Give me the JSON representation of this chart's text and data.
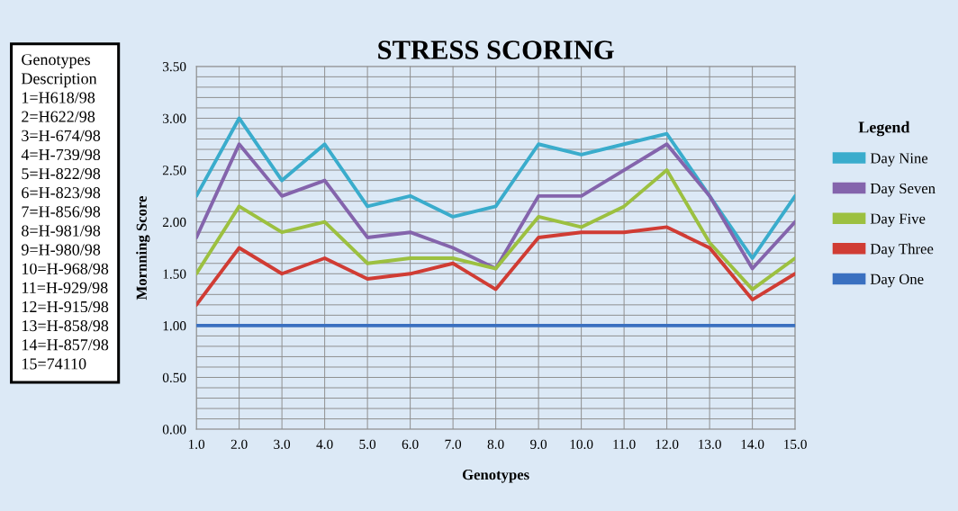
{
  "chart_data": {
    "type": "line",
    "title": "STRESS SCORING",
    "xlabel": "Genotypes",
    "ylabel": "Mornning Score",
    "legend_title": "Legend",
    "annotations": [
      "Genotypes\nDescription\n1=H618/98\n2=H622/98\n3=H-674/98\n4=H-739/98\n5=H-822/98\n6=H-823/98\n7=H-856/98\n8=H-981/98\n9=H-980/98\n10=H-968/98\n11=H-929/98\n12=H-915/98\n13=H-858/98\n14=H-857/98\n15=74110"
    ],
    "x": [
      1,
      2,
      3,
      4,
      5,
      6,
      7,
      8,
      9,
      10,
      11,
      12,
      13,
      14,
      15
    ],
    "series": [
      {
        "name": "Day Nine",
        "color": "#3aaccc",
        "values": [
          2.25,
          3.0,
          2.4,
          2.75,
          2.15,
          2.25,
          2.05,
          2.15,
          2.75,
          2.65,
          2.75,
          2.85,
          2.25,
          1.65,
          2.25
        ]
      },
      {
        "name": "Day Seven",
        "color": "#8464ac",
        "values": [
          1.85,
          2.75,
          2.25,
          2.4,
          1.85,
          1.9,
          1.75,
          1.55,
          2.25,
          2.25,
          2.5,
          2.75,
          2.25,
          1.55,
          2.0
        ]
      },
      {
        "name": "Day Five",
        "color": "#9cc040",
        "values": [
          1.5,
          2.15,
          1.9,
          2.0,
          1.6,
          1.65,
          1.65,
          1.55,
          2.05,
          1.95,
          2.15,
          2.5,
          1.8,
          1.35,
          1.65
        ]
      },
      {
        "name": "Day Three",
        "color": "#d03c34",
        "values": [
          1.2,
          1.75,
          1.5,
          1.65,
          1.45,
          1.5,
          1.6,
          1.35,
          1.85,
          1.9,
          1.9,
          1.95,
          1.75,
          1.25,
          1.5
        ]
      },
      {
        "name": "Day One",
        "color": "#3a70c0",
        "values": [
          1.0,
          1.0,
          1.0,
          1.0,
          1.0,
          1.0,
          1.0,
          1.0,
          1.0,
          1.0,
          1.0,
          1.0,
          1.0,
          1.0,
          1.0
        ]
      }
    ],
    "xlim": [
      1,
      15
    ],
    "xticks": [
      {
        "value": 1,
        "label": "1.0"
      },
      {
        "value": 2,
        "label": "2.0"
      },
      {
        "value": 3,
        "label": "3.0"
      },
      {
        "value": 4,
        "label": "4.0"
      },
      {
        "value": 5,
        "label": "5.0"
      },
      {
        "value": 6,
        "label": "6.0"
      },
      {
        "value": 7,
        "label": "7.0"
      },
      {
        "value": 8,
        "label": "8.0"
      },
      {
        "value": 9,
        "label": "9.0"
      },
      {
        "value": 10,
        "label": "10.0"
      },
      {
        "value": 11,
        "label": "11.0"
      },
      {
        "value": 12,
        "label": "12.0"
      },
      {
        "value": 13,
        "label": "13.0"
      },
      {
        "value": 14,
        "label": "14.0"
      },
      {
        "value": 15,
        "label": "15.0"
      }
    ],
    "ylim": [
      0,
      3.5
    ],
    "yticks": [
      {
        "value": 0,
        "label": "0.00"
      },
      {
        "value": 0.1,
        "label": null
      },
      {
        "value": 0.2,
        "label": null
      },
      {
        "value": 0.3,
        "label": null
      },
      {
        "value": 0.4,
        "label": null
      },
      {
        "value": 0.5,
        "label": "0.50"
      },
      {
        "value": 0.6,
        "label": null
      },
      {
        "value": 0.7,
        "label": null
      },
      {
        "value": 0.8,
        "label": null
      },
      {
        "value": 0.9,
        "label": null
      },
      {
        "value": 1.0,
        "label": "1.00"
      },
      {
        "value": 1.1,
        "label": null
      },
      {
        "value": 1.2,
        "label": null
      },
      {
        "value": 1.3,
        "label": null
      },
      {
        "value": 1.4,
        "label": null
      },
      {
        "value": 1.5,
        "label": "1.50"
      },
      {
        "value": 1.6,
        "label": null
      },
      {
        "value": 1.7,
        "label": null
      },
      {
        "value": 1.8,
        "label": null
      },
      {
        "value": 1.9,
        "label": null
      },
      {
        "value": 2.0,
        "label": "2.00"
      },
      {
        "value": 2.1,
        "label": null
      },
      {
        "value": 2.2,
        "label": null
      },
      {
        "value": 2.3,
        "label": null
      },
      {
        "value": 2.4,
        "label": null
      },
      {
        "value": 2.5,
        "label": "2.50"
      },
      {
        "value": 2.6,
        "label": null
      },
      {
        "value": 2.7,
        "label": null
      },
      {
        "value": 2.8,
        "label": null
      },
      {
        "value": 2.9,
        "label": null
      },
      {
        "value": 3.0,
        "label": "3.00"
      },
      {
        "value": 3.1,
        "label": null
      },
      {
        "value": 3.2,
        "label": null
      },
      {
        "value": 3.3,
        "label": null
      },
      {
        "value": 3.4,
        "label": null
      },
      {
        "value": 3.5,
        "label": "3.50"
      }
    ],
    "grid": true,
    "legend": "right",
    "line_style": "solid"
  }
}
